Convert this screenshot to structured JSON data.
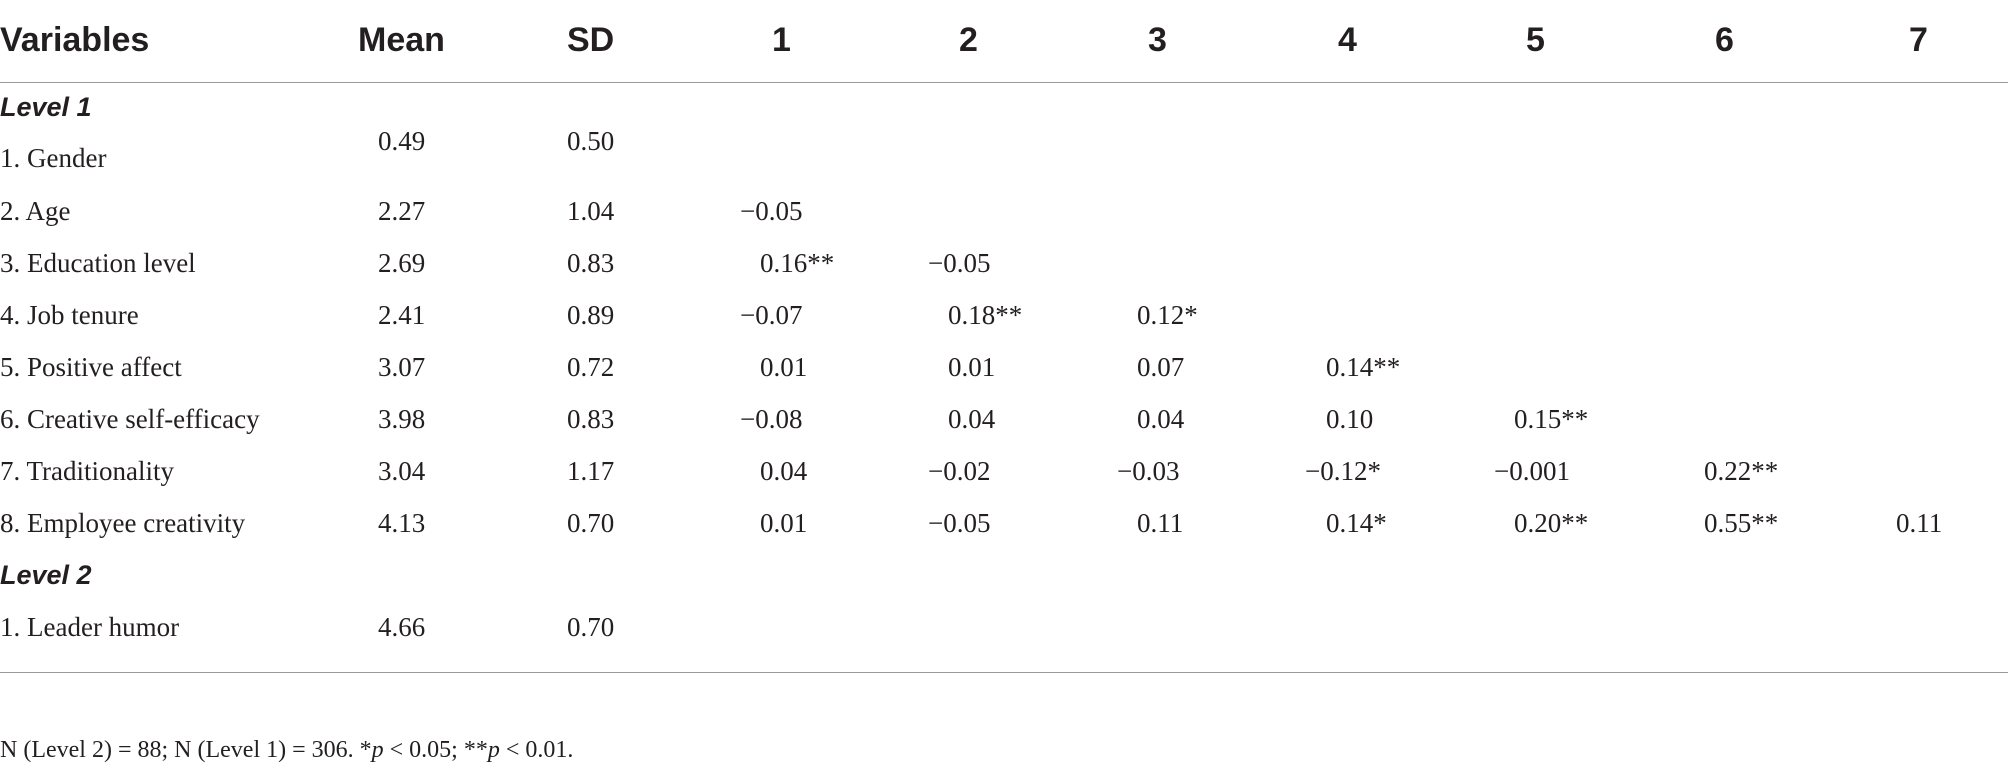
{
  "header": {
    "variables": "Variables",
    "mean": "Mean",
    "sd": "SD",
    "c1": "1",
    "c2": "2",
    "c3": "3",
    "c4": "4",
    "c5": "5",
    "c6": "6",
    "c7": "7"
  },
  "level1_label": "Level 1",
  "level2_label": "Level 2",
  "rows": [
    {
      "name": "1. Gender",
      "mean": "0.49",
      "sd": "0.50",
      "c": [
        "",
        "",
        "",
        "",
        "",
        "",
        ""
      ]
    },
    {
      "name": "2. Age",
      "mean": "2.27",
      "sd": "1.04",
      "c": [
        "−0.05",
        "",
        "",
        "",
        "",
        "",
        ""
      ]
    },
    {
      "name": "3. Education level",
      "mean": "2.69",
      "sd": "0.83",
      "c": [
        "0.16**",
        "−0.05",
        "",
        "",
        "",
        "",
        ""
      ]
    },
    {
      "name": "4. Job tenure",
      "mean": "2.41",
      "sd": "0.89",
      "c": [
        "−0.07",
        "0.18**",
        "0.12*",
        "",
        "",
        "",
        ""
      ]
    },
    {
      "name": "5. Positive affect",
      "mean": "3.07",
      "sd": "0.72",
      "c": [
        "0.01",
        "0.01",
        "0.07",
        "0.14**",
        "",
        "",
        ""
      ]
    },
    {
      "name": "6. Creative self-efficacy",
      "mean": "3.98",
      "sd": "0.83",
      "c": [
        "−0.08",
        "0.04",
        "0.04",
        "0.10",
        "0.15**",
        "",
        ""
      ]
    },
    {
      "name": "7. Traditionality",
      "mean": "3.04",
      "sd": "1.17",
      "c": [
        "0.04",
        "−0.02",
        "−0.03",
        "−0.12*",
        "−0.001",
        "0.22**",
        ""
      ]
    },
    {
      "name": "8. Employee creativity",
      "mean": "4.13",
      "sd": "0.70",
      "c": [
        "0.01",
        "−0.05",
        "0.11",
        "0.14*",
        "0.20**",
        "0.55**",
        "0.11"
      ]
    }
  ],
  "level2_rows": [
    {
      "name": "1. Leader humor",
      "mean": "4.66",
      "sd": "0.70"
    }
  ],
  "footnote": {
    "part1": "N (Level 2) = 88; N (Level 1) = 306. *",
    "p1": "p",
    "part2": " < 0.05; **",
    "p2": "p",
    "part3": " < 0.01."
  }
}
